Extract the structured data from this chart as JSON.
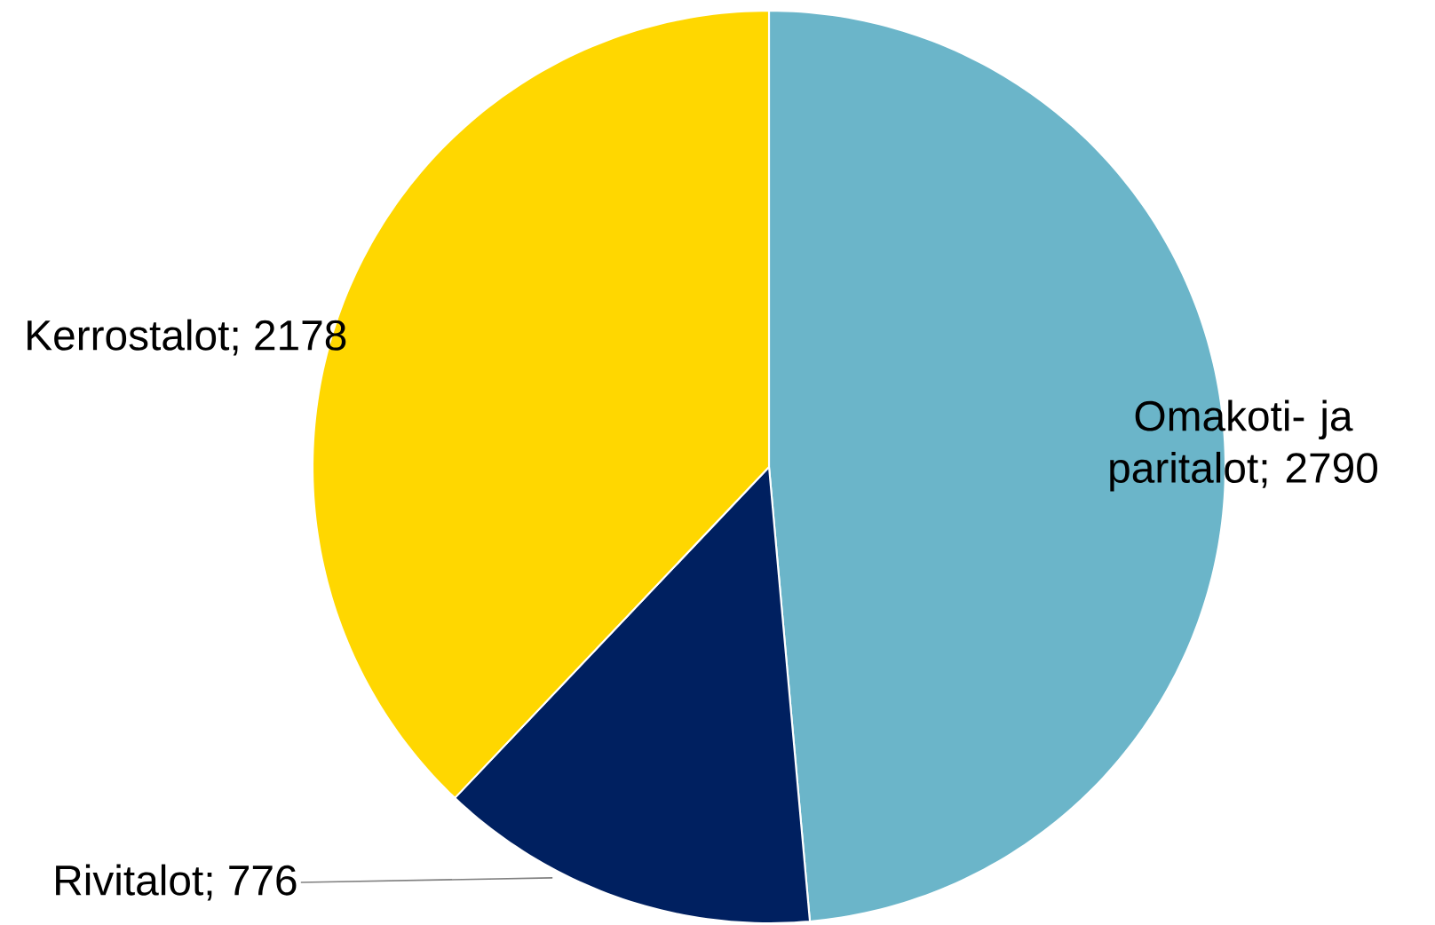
{
  "chart_data": {
    "type": "pie",
    "categories": [
      "Omakoti- ja paritalot",
      "Rivitalot",
      "Kerrostalot"
    ],
    "values": [
      2790,
      776,
      2178
    ],
    "colors": [
      "#6bb5c9",
      "#002060",
      "#ffd700"
    ],
    "value_labels": [
      "; 2790",
      "; 776",
      "; 2178"
    ]
  }
}
